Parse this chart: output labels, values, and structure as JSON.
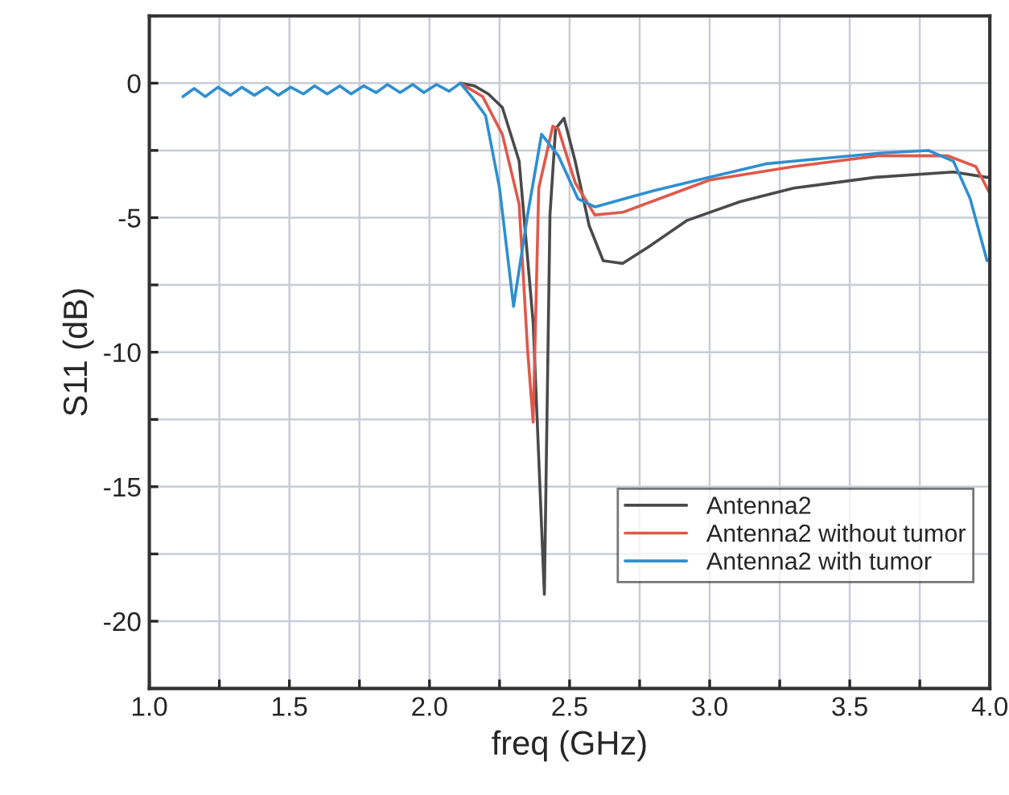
{
  "chart_data": {
    "type": "line",
    "xlabel": "freq (GHz)",
    "ylabel": "S11 (dB)",
    "xlim": [
      1.0,
      4.0
    ],
    "ylim": [
      -22.5,
      2.5
    ],
    "xticks": [
      {
        "value": 1.0,
        "label": "1.0"
      },
      {
        "value": 1.25,
        "label": null
      },
      {
        "value": 1.5,
        "label": "1.5"
      },
      {
        "value": 1.75,
        "label": null
      },
      {
        "value": 2.0,
        "label": "2.0"
      },
      {
        "value": 2.25,
        "label": null
      },
      {
        "value": 2.5,
        "label": "2.5"
      },
      {
        "value": 2.75,
        "label": null
      },
      {
        "value": 3.0,
        "label": "3.0"
      },
      {
        "value": 3.25,
        "label": null
      },
      {
        "value": 3.5,
        "label": "3.5"
      },
      {
        "value": 3.75,
        "label": null
      },
      {
        "value": 4.0,
        "label": "4.0"
      }
    ],
    "yticks": [
      {
        "value": -22.5,
        "label": null
      },
      -20,
      {
        "value": -17.5,
        "label": null
      },
      -15,
      {
        "value": -12.5,
        "label": null
      },
      -10,
      {
        "value": -7.5,
        "label": null
      },
      -5,
      {
        "value": -2.5,
        "label": null
      },
      0,
      {
        "value": 2.5,
        "label": null
      }
    ],
    "grid": true,
    "legend": "bottom right",
    "series": [
      {
        "name": "Antenna2",
        "color": "#4a4a4a",
        "x": [
          2.11,
          2.16,
          2.21,
          2.26,
          2.32,
          2.37,
          2.41,
          2.43,
          2.45,
          2.48,
          2.52,
          2.57,
          2.62,
          2.69,
          2.78,
          2.92,
          3.11,
          3.3,
          3.59,
          3.87,
          3.99,
          4.0
        ],
        "values": [
          0.0,
          -0.1,
          -0.4,
          -0.9,
          -2.9,
          -8.9,
          -19.0,
          -4.9,
          -1.7,
          -1.3,
          -2.9,
          -5.3,
          -6.6,
          -6.7,
          -6.1,
          -5.1,
          -4.4,
          -3.9,
          -3.5,
          -3.3,
          -3.5,
          -3.5
        ]
      },
      {
        "name": "Antenna2 without tumor",
        "color": "#e0584a",
        "x": [
          2.11,
          2.19,
          2.26,
          2.32,
          2.35,
          2.37,
          2.39,
          2.44,
          2.46,
          2.52,
          2.59,
          2.69,
          3.0,
          3.3,
          3.6,
          3.85,
          3.95,
          4.0
        ],
        "values": [
          0.0,
          -0.5,
          -1.9,
          -4.5,
          -9.9,
          -12.6,
          -3.9,
          -1.6,
          -1.7,
          -3.7,
          -4.9,
          -4.8,
          -3.6,
          -3.1,
          -2.7,
          -2.7,
          -3.1,
          -4.1
        ]
      },
      {
        "name": "Antenna2 with tumor",
        "color": "#2e8fd0",
        "x": [
          1.12,
          1.16,
          1.2,
          1.245,
          1.29,
          1.33,
          1.375,
          1.42,
          1.46,
          1.505,
          1.55,
          1.59,
          1.635,
          1.68,
          1.72,
          1.765,
          1.81,
          1.85,
          1.895,
          1.94,
          1.98,
          2.025,
          2.07,
          2.11,
          2.15,
          2.2,
          2.25,
          2.3,
          2.35,
          2.4,
          2.46,
          2.53,
          2.59,
          2.8,
          3.0,
          3.2,
          3.3,
          3.61,
          3.78,
          3.87,
          3.93,
          3.99
        ],
        "values": [
          -0.5,
          -0.2,
          -0.5,
          -0.15,
          -0.45,
          -0.15,
          -0.45,
          -0.15,
          -0.45,
          -0.15,
          -0.4,
          -0.1,
          -0.4,
          -0.1,
          -0.4,
          -0.1,
          -0.35,
          -0.05,
          -0.35,
          -0.05,
          -0.35,
          -0.05,
          -0.3,
          0.0,
          -0.5,
          -1.2,
          -3.9,
          -8.3,
          -4.9,
          -1.9,
          -2.7,
          -4.3,
          -4.6,
          -4.0,
          -3.5,
          -3.0,
          -2.9,
          -2.6,
          -2.5,
          -2.9,
          -4.3,
          -6.6
        ]
      }
    ]
  }
}
